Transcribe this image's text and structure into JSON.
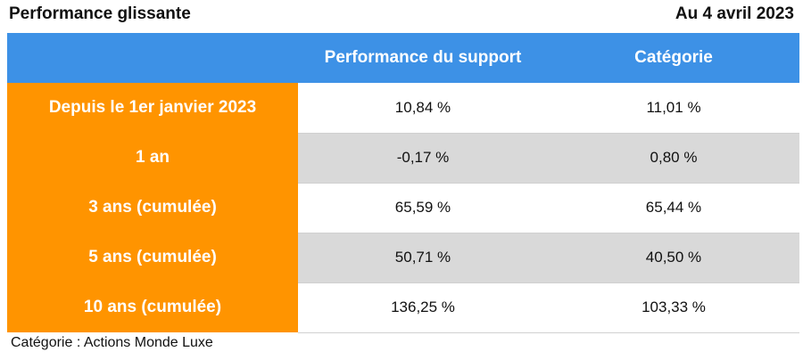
{
  "header": {
    "title": "Performance glissante",
    "date": "Au 4 avril 2023"
  },
  "chart_data": {
    "type": "table",
    "columns": [
      "",
      "Performance du support",
      "Catégorie"
    ],
    "rows": [
      {
        "period": "Depuis le 1er janvier 2023",
        "support": "10,84 %",
        "category": "11,01 %"
      },
      {
        "period": "1 an",
        "support": "-0,17 %",
        "category": "0,80 %"
      },
      {
        "period": "3 ans (cumulée)",
        "support": "65,59 %",
        "category": "65,44 %"
      },
      {
        "period": "5 ans (cumulée)",
        "support": "50,71 %",
        "category": "40,50 %"
      },
      {
        "period": "10 ans (cumulée)",
        "support": "136,25 %",
        "category": "103,33 %"
      }
    ],
    "values_support": [
      10.84,
      -0.17,
      65.59,
      50.71,
      136.25
    ],
    "values_category": [
      11.01,
      0.8,
      65.44,
      40.5,
      103.33
    ]
  },
  "footnote": "Catégorie : Actions Monde Luxe",
  "colors": {
    "header_blue": "#3d91e6",
    "label_orange": "#ff9400",
    "stripe_gray": "#d9d9d9"
  }
}
